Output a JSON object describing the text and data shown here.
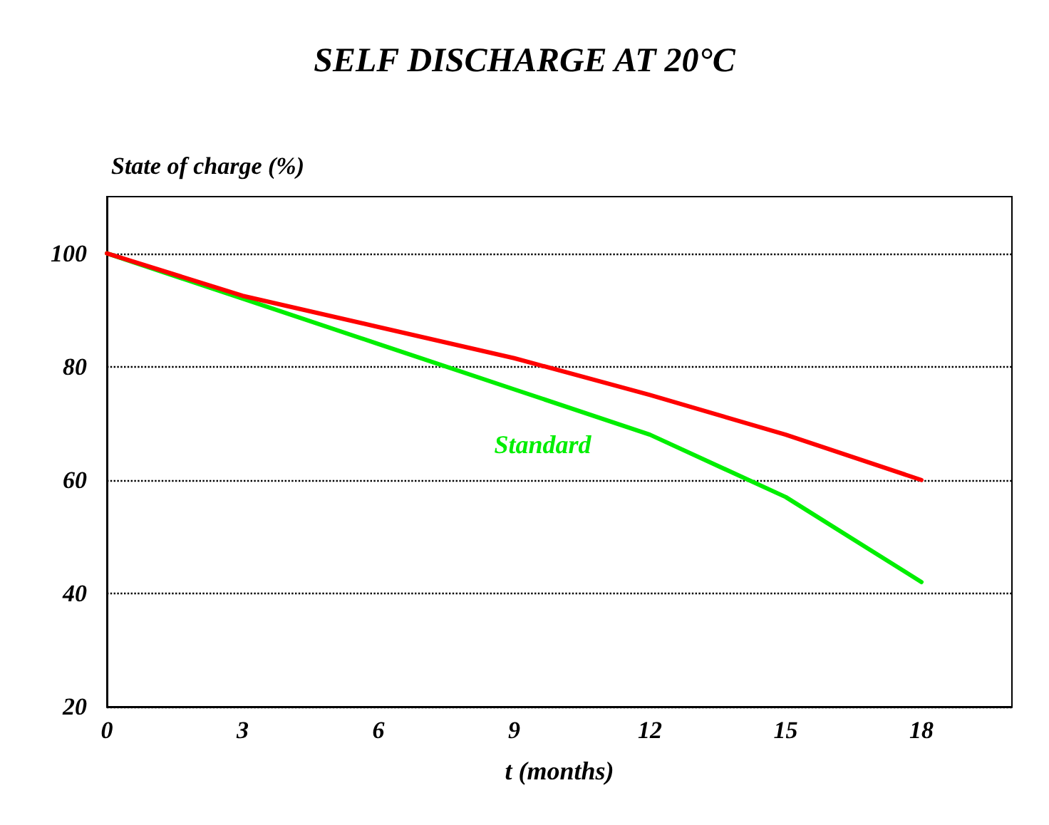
{
  "chart_data": {
    "type": "line",
    "title": "SELF DISCHARGE AT 20°C",
    "xlabel": "t (months)",
    "ylabel": "State of charge (%)",
    "x": [
      0,
      3,
      6,
      9,
      12,
      15,
      18
    ],
    "series": [
      {
        "color": "#ff0000",
        "values": [
          100,
          92.5,
          87,
          81.5,
          75,
          68,
          60
        ]
      },
      {
        "name": "Standard",
        "color": "#00ee00",
        "values": [
          100,
          92,
          84,
          76,
          68,
          57,
          42
        ]
      }
    ],
    "xlim": [
      0,
      20
    ],
    "xticks": [
      0,
      3,
      6,
      9,
      12,
      15,
      18
    ],
    "ylim": [
      20,
      110
    ],
    "yticks": [
      20,
      40,
      60,
      80,
      100
    ],
    "grid": "y",
    "legend": false,
    "marker": "none",
    "line_style": "solid"
  }
}
